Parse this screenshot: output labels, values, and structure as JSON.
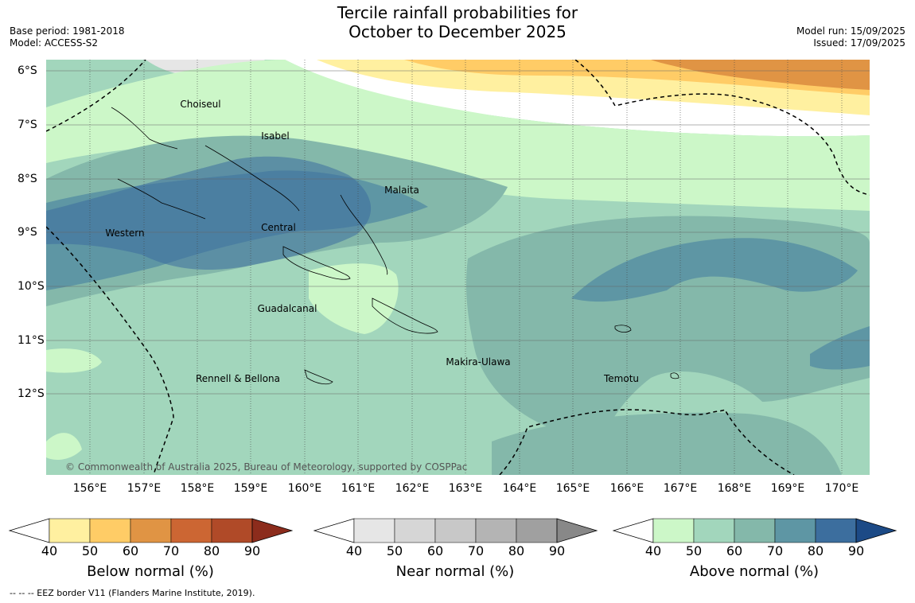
{
  "header": {
    "title_line1": "Tercile rainfall probabilities for",
    "title_line2": "October to December 2025",
    "base_period": "Base period: 1981-2018",
    "model": "Model: ACCESS-S2",
    "model_run": "Model run: 15/09/2025",
    "issued": "Issued: 17/09/2025"
  },
  "map": {
    "lat_labels": [
      "6°S",
      "7°S",
      "8°S",
      "9°S",
      "10°S",
      "11°S",
      "12°S"
    ],
    "lon_labels": [
      "156°E",
      "157°E",
      "158°E",
      "159°E",
      "160°E",
      "161°E",
      "162°E",
      "163°E",
      "164°E",
      "165°E",
      "166°E",
      "167°E",
      "168°E",
      "169°E",
      "170°E"
    ],
    "regions": [
      "Choiseul",
      "Isabel",
      "Malaita",
      "Western",
      "Central",
      "Guadalcanal",
      "Makira-Ulawa",
      "Rennell & Bellona",
      "Temotu"
    ],
    "copyright": "© Commonwealth of Australia 2025, Bureau of Meteorology, supported by COSPPac"
  },
  "legends": [
    {
      "title": "Below normal (%)",
      "ticks": [
        "40",
        "50",
        "60",
        "70",
        "80",
        "90"
      ],
      "colors": [
        "#ffffff",
        "#fff0a0",
        "#ffcc66",
        "#e09444",
        "#cc6633",
        "#b04a28",
        "#8c2c1c"
      ]
    },
    {
      "title": "Near normal (%)",
      "ticks": [
        "40",
        "50",
        "60",
        "70",
        "80",
        "90"
      ],
      "colors": [
        "#ffffff",
        "#e6e6e6",
        "#d6d6d6",
        "#c8c8c8",
        "#b4b4b4",
        "#a0a0a0",
        "#888888"
      ]
    },
    {
      "title": "Above normal (%)",
      "ticks": [
        "40",
        "50",
        "60",
        "70",
        "80",
        "90"
      ],
      "colors": [
        "#ffffff",
        "#ccf7c8",
        "#a2d6bc",
        "#84b8aa",
        "#5e96a4",
        "#3c6e9e",
        "#1c4a86"
      ]
    }
  ],
  "footnote": "--  --  -- EEZ border V11 (Flanders Marine Institute, 2019)."
}
